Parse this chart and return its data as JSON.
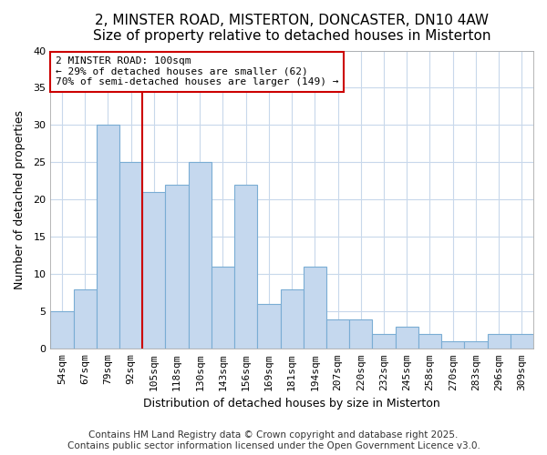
{
  "title": "2, MINSTER ROAD, MISTERTON, DONCASTER, DN10 4AW",
  "subtitle": "Size of property relative to detached houses in Misterton",
  "xlabel": "Distribution of detached houses by size in Misterton",
  "ylabel": "Number of detached properties",
  "categories": [
    "54sqm",
    "67sqm",
    "79sqm",
    "92sqm",
    "105sqm",
    "118sqm",
    "130sqm",
    "143sqm",
    "156sqm",
    "169sqm",
    "181sqm",
    "194sqm",
    "207sqm",
    "220sqm",
    "232sqm",
    "245sqm",
    "258sqm",
    "270sqm",
    "283sqm",
    "296sqm",
    "309sqm"
  ],
  "values": [
    5,
    8,
    30,
    25,
    21,
    22,
    25,
    11,
    22,
    6,
    8,
    11,
    4,
    4,
    2,
    3,
    2,
    1,
    1,
    2,
    2
  ],
  "bar_color": "#c5d8ee",
  "bar_edge_color": "#7aadd4",
  "vline_index": 4,
  "vline_color": "#cc0000",
  "annotation_text": "2 MINSTER ROAD: 100sqm\n← 29% of detached houses are smaller (62)\n70% of semi-detached houses are larger (149) →",
  "annotation_box_color": "#ffffff",
  "annotation_box_edge": "#cc0000",
  "ylim": [
    0,
    40
  ],
  "yticks": [
    0,
    5,
    10,
    15,
    20,
    25,
    30,
    35,
    40
  ],
  "footer1": "Contains HM Land Registry data © Crown copyright and database right 2025.",
  "footer2": "Contains public sector information licensed under the Open Government Licence v3.0.",
  "bg_color": "#ffffff",
  "plot_bg_color": "#ffffff",
  "grid_color": "#c8d8eb",
  "title_fontsize": 11,
  "label_fontsize": 9,
  "tick_fontsize": 8,
  "annotation_fontsize": 8,
  "footer_fontsize": 7.5
}
